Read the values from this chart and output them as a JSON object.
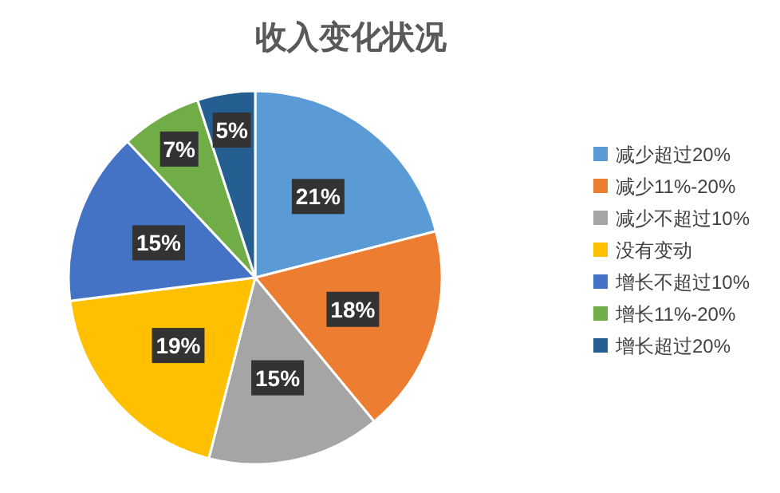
{
  "chart_data": {
    "type": "pie",
    "title": "收入变化状况",
    "legend": "right",
    "value_labels": [
      "21%",
      "18%",
      "15%",
      "19%",
      "15%",
      "7%",
      "5%"
    ],
    "categories": [
      "减少超过20%",
      "减少11%-20%",
      "减少不超过10%",
      "没有变动",
      "增长不超过10%",
      "增长11%-20%",
      "增长超过20%"
    ],
    "values": [
      21,
      18,
      15,
      19,
      15,
      7,
      5
    ],
    "colors": [
      "#5b9bd5",
      "#ed7d31",
      "#a5a5a5",
      "#ffc000",
      "#4472c4",
      "#70ad47",
      "#255e91"
    ]
  }
}
